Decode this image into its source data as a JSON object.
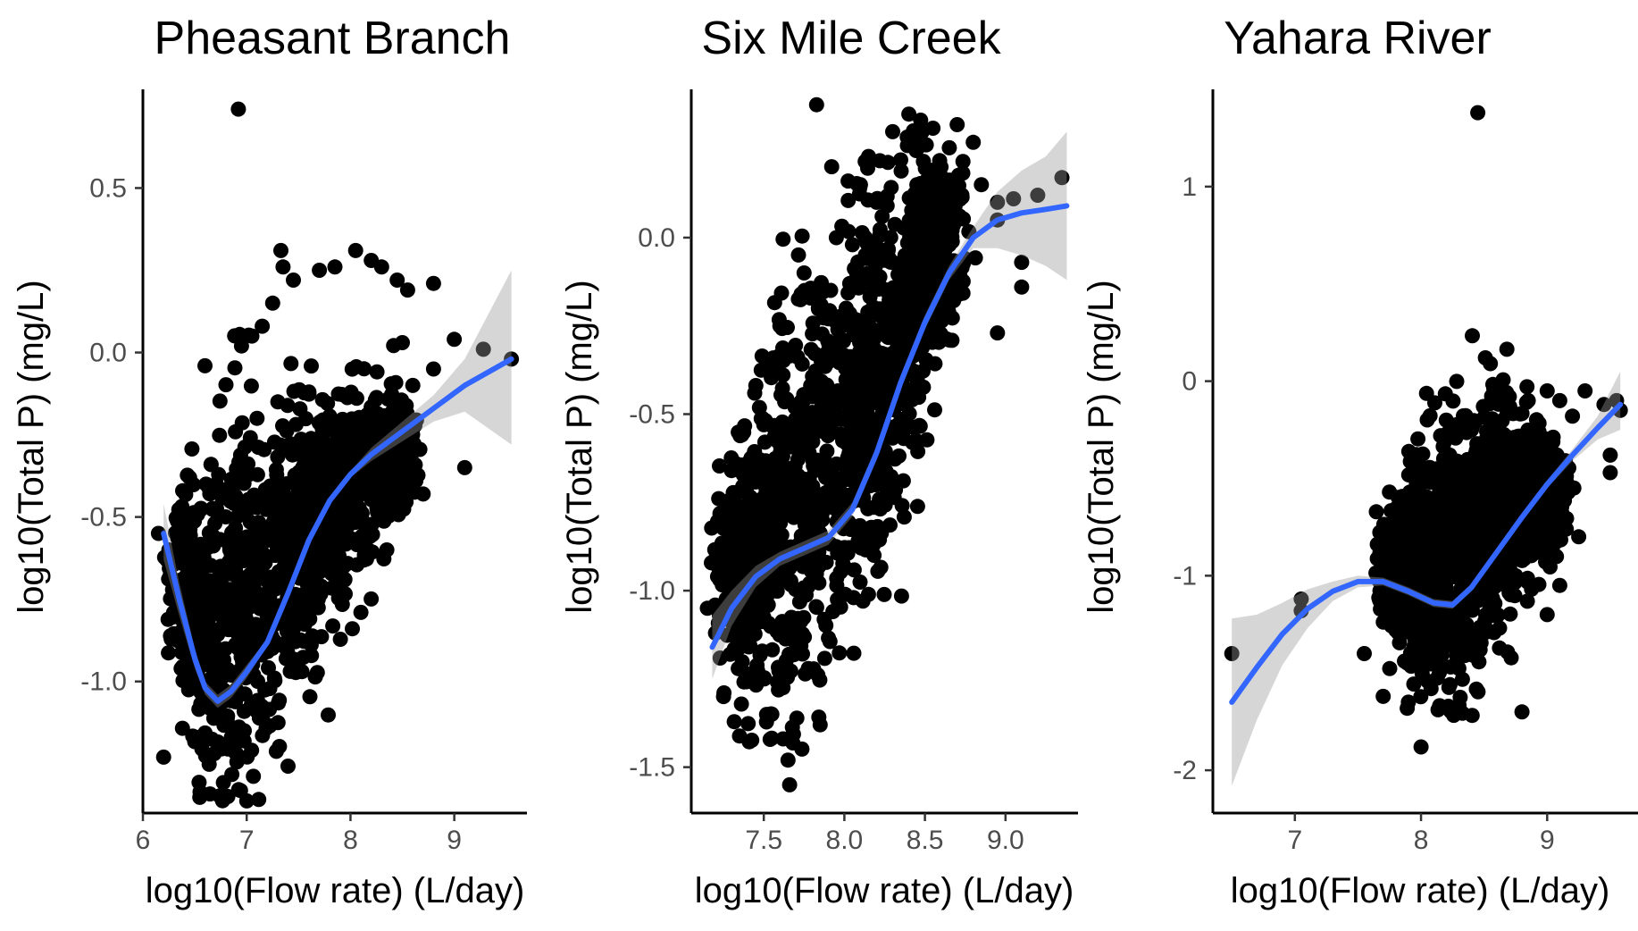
{
  "colors": {
    "points": "#000000",
    "smooth_line": "#3366FF",
    "ribbon": "#999999",
    "background": "#ffffff"
  },
  "chart_data": [
    {
      "type": "scatter",
      "title": "Pheasant Branch",
      "xlabel": "log10(Flow rate) (L/day)",
      "ylabel": "log10(Total P) (mg/L)",
      "xlim": [
        6.0,
        9.7
      ],
      "ylim": [
        -1.4,
        0.8
      ],
      "xticks": [
        6,
        7,
        8,
        9
      ],
      "xtick_labels": [
        "6",
        "7",
        "8",
        "9"
      ],
      "yticks": [
        -1.0,
        -0.5,
        0.0,
        0.5
      ],
      "ytick_labels": [
        "-1.0",
        "-0.5",
        "0.0",
        "0.5"
      ],
      "grid": false,
      "cloud": {
        "ridge": [
          [
            6.3,
            -0.72
          ],
          [
            6.6,
            -0.8
          ],
          [
            7.0,
            -0.75
          ],
          [
            7.4,
            -0.6
          ],
          [
            7.8,
            -0.45
          ],
          [
            8.2,
            -0.36
          ],
          [
            8.6,
            -0.3
          ]
        ],
        "half_width": [
          [
            6.3,
            0.22
          ],
          [
            6.6,
            0.48
          ],
          [
            7.0,
            0.5
          ],
          [
            7.4,
            0.42
          ],
          [
            7.8,
            0.3
          ],
          [
            8.2,
            0.22
          ],
          [
            8.6,
            0.12
          ]
        ],
        "y_min": -1.38
      },
      "points": [
        [
          6.92,
          0.74
        ],
        [
          6.2,
          -1.23
        ],
        [
          6.15,
          -0.55
        ],
        [
          6.25,
          -0.6
        ],
        [
          6.3,
          -0.87
        ],
        [
          6.4,
          -0.62
        ],
        [
          6.45,
          -0.38
        ],
        [
          7.7,
          0.25
        ],
        [
          7.85,
          0.26
        ],
        [
          8.05,
          0.31
        ],
        [
          8.2,
          0.28
        ],
        [
          8.3,
          0.26
        ],
        [
          8.45,
          0.22
        ],
        [
          8.55,
          0.19
        ],
        [
          8.8,
          0.21
        ],
        [
          7.35,
          0.26
        ],
        [
          7.45,
          0.22
        ],
        [
          7.25,
          0.15
        ],
        [
          7.15,
          0.08
        ],
        [
          6.95,
          0.02
        ],
        [
          7.05,
          0.05
        ],
        [
          8.5,
          0.03
        ],
        [
          8.6,
          -0.1
        ],
        [
          8.8,
          -0.05
        ],
        [
          9.0,
          0.04
        ],
        [
          9.28,
          0.01
        ],
        [
          9.55,
          -0.02
        ],
        [
          9.1,
          -0.35
        ],
        [
          8.7,
          -0.43
        ],
        [
          8.1,
          -0.79
        ],
        [
          8.35,
          -0.6
        ],
        [
          8.0,
          -0.25
        ],
        [
          7.6,
          -0.12
        ],
        [
          7.3,
          -0.15
        ],
        [
          7.1,
          -0.2
        ]
      ],
      "smooth": {
        "x": [
          6.2,
          6.35,
          6.5,
          6.6,
          6.72,
          6.85,
          7.0,
          7.2,
          7.4,
          7.6,
          7.8,
          8.0,
          8.2,
          8.5,
          8.8,
          9.1,
          9.55
        ],
        "y": [
          -0.55,
          -0.75,
          -0.93,
          -1.02,
          -1.06,
          -1.03,
          -0.97,
          -0.88,
          -0.73,
          -0.57,
          -0.45,
          -0.37,
          -0.31,
          -0.24,
          -0.17,
          -0.1,
          -0.02
        ],
        "lower": [
          -0.63,
          -0.8,
          -0.96,
          -1.04,
          -1.08,
          -1.05,
          -0.99,
          -0.89,
          -0.74,
          -0.58,
          -0.46,
          -0.38,
          -0.33,
          -0.27,
          -0.21,
          -0.18,
          -0.28
        ],
        "upper": [
          -0.46,
          -0.7,
          -0.9,
          -1.0,
          -1.04,
          -1.01,
          -0.95,
          -0.87,
          -0.72,
          -0.56,
          -0.44,
          -0.36,
          -0.29,
          -0.21,
          -0.13,
          -0.02,
          0.25
        ]
      }
    },
    {
      "type": "scatter",
      "title": "Six Mile Creek",
      "xlabel": "log10(Flow rate) (L/day)",
      "ylabel": "log10(Total P) (mg/L)",
      "xlim": [
        7.05,
        9.45
      ],
      "ylim": [
        -1.63,
        0.42
      ],
      "xticks": [
        7.5,
        8.0,
        8.5,
        9.0
      ],
      "xtick_labels": [
        "7.5",
        "8.0",
        "8.5",
        "9.0"
      ],
      "yticks": [
        -1.5,
        -1.0,
        -0.5,
        0.0
      ],
      "ytick_labels": [
        "-1.5",
        "-1.0",
        "-0.5",
        "0.0"
      ],
      "grid": false,
      "cloud": {
        "ridge": [
          [
            7.25,
            -0.95
          ],
          [
            7.5,
            -0.85
          ],
          [
            7.75,
            -0.75
          ],
          [
            8.0,
            -0.55
          ],
          [
            8.25,
            -0.35
          ],
          [
            8.5,
            -0.1
          ],
          [
            8.7,
            0.0
          ]
        ],
        "half_width": [
          [
            7.25,
            0.25
          ],
          [
            7.5,
            0.45
          ],
          [
            7.75,
            0.55
          ],
          [
            8.0,
            0.5
          ],
          [
            8.25,
            0.45
          ],
          [
            8.5,
            0.35
          ],
          [
            8.7,
            0.2
          ]
        ],
        "y_min": -1.45
      },
      "points": [
        [
          7.15,
          -1.05
        ],
        [
          7.2,
          -1.12
        ],
        [
          7.25,
          -1.3
        ],
        [
          7.3,
          -0.66
        ],
        [
          7.4,
          -0.68
        ],
        [
          7.5,
          -0.53
        ],
        [
          7.62,
          -1.42
        ],
        [
          7.65,
          -1.48
        ],
        [
          7.66,
          -1.55
        ],
        [
          7.55,
          -1.35
        ],
        [
          7.75,
          -0.6
        ],
        [
          7.85,
          -1.38
        ],
        [
          7.6,
          -0.25
        ],
        [
          7.75,
          -0.1
        ],
        [
          8.15,
          0.23
        ],
        [
          8.1,
          0.15
        ],
        [
          8.3,
          0.3
        ],
        [
          8.4,
          0.35
        ],
        [
          8.55,
          0.31
        ],
        [
          8.7,
          0.32
        ],
        [
          8.8,
          0.27
        ],
        [
          8.6,
          0.2
        ],
        [
          8.35,
          0.22
        ],
        [
          8.45,
          0.15
        ],
        [
          8.85,
          0.15
        ],
        [
          8.95,
          0.1
        ],
        [
          9.05,
          0.11
        ],
        [
          9.2,
          0.12
        ],
        [
          9.35,
          0.17
        ],
        [
          8.95,
          0.05
        ],
        [
          9.1,
          -0.07
        ],
        [
          9.1,
          -0.14
        ],
        [
          8.95,
          -0.27
        ],
        [
          8.45,
          0.06
        ],
        [
          8.2,
          0.1
        ],
        [
          7.95,
          0.0
        ],
        [
          8.05,
          -0.02
        ],
        [
          8.5,
          -0.12
        ]
      ],
      "smooth": {
        "x": [
          7.18,
          7.3,
          7.45,
          7.6,
          7.75,
          7.9,
          8.05,
          8.2,
          8.35,
          8.5,
          8.65,
          8.8,
          8.95,
          9.1,
          9.25,
          9.38
        ],
        "y": [
          -1.16,
          -1.05,
          -0.96,
          -0.91,
          -0.88,
          -0.85,
          -0.77,
          -0.61,
          -0.41,
          -0.24,
          -0.1,
          0.0,
          0.05,
          0.07,
          0.08,
          0.09
        ],
        "lower": [
          -1.25,
          -1.1,
          -0.99,
          -0.93,
          -0.9,
          -0.87,
          -0.79,
          -0.63,
          -0.43,
          -0.26,
          -0.12,
          -0.03,
          -0.03,
          -0.05,
          -0.08,
          -0.12
        ],
        "upper": [
          -1.07,
          -1.0,
          -0.93,
          -0.89,
          -0.86,
          -0.83,
          -0.75,
          -0.59,
          -0.39,
          -0.22,
          -0.08,
          0.03,
          0.13,
          0.19,
          0.23,
          0.3
        ]
      }
    },
    {
      "type": "scatter",
      "title": "Yahara River",
      "xlabel": "log10(Flow rate) (L/day)",
      "ylabel": "log10(Total P) (mg/L)",
      "xlim": [
        6.35,
        9.72
      ],
      "ylim": [
        -2.22,
        1.5
      ],
      "xticks": [
        7,
        8,
        9
      ],
      "xtick_labels": [
        "7",
        "8",
        "9"
      ],
      "yticks": [
        -2,
        -1,
        0,
        1
      ],
      "ytick_labels": [
        "-2",
        "-1",
        "0",
        "1"
      ],
      "grid": false,
      "cloud": {
        "ridge": [
          [
            7.7,
            -1.0
          ],
          [
            8.0,
            -0.95
          ],
          [
            8.3,
            -0.85
          ],
          [
            8.6,
            -0.7
          ],
          [
            8.9,
            -0.6
          ],
          [
            9.1,
            -0.55
          ]
        ],
        "half_width": [
          [
            7.7,
            0.25
          ],
          [
            8.0,
            0.55
          ],
          [
            8.3,
            0.65
          ],
          [
            8.6,
            0.55
          ],
          [
            8.9,
            0.35
          ],
          [
            9.1,
            0.2
          ]
        ],
        "y_min": -1.72
      },
      "points": [
        [
          8.45,
          1.38
        ],
        [
          6.5,
          -1.4
        ],
        [
          7.05,
          -1.12
        ],
        [
          7.05,
          -1.18
        ],
        [
          7.55,
          -1.4
        ],
        [
          7.7,
          -1.62
        ],
        [
          7.9,
          -1.65
        ],
        [
          8.0,
          -1.88
        ],
        [
          8.8,
          -1.7
        ],
        [
          7.8,
          -1.28
        ],
        [
          7.75,
          -0.57
        ],
        [
          8.2,
          -0.2
        ],
        [
          8.4,
          -0.25
        ],
        [
          8.55,
          0.09
        ],
        [
          8.7,
          -0.08
        ],
        [
          8.85,
          -0.1
        ],
        [
          9.0,
          -0.05
        ],
        [
          9.1,
          -0.1
        ],
        [
          9.2,
          -0.18
        ],
        [
          9.3,
          -0.05
        ],
        [
          9.45,
          -0.12
        ],
        [
          9.55,
          -0.1
        ],
        [
          9.58,
          -0.15
        ],
        [
          9.5,
          -0.38
        ],
        [
          9.5,
          -0.47
        ],
        [
          9.25,
          -0.8
        ],
        [
          9.1,
          -1.05
        ],
        [
          9.0,
          -1.2
        ]
      ],
      "smooth": {
        "x": [
          6.5,
          6.7,
          6.9,
          7.1,
          7.3,
          7.5,
          7.7,
          7.9,
          8.1,
          8.25,
          8.4,
          8.6,
          8.8,
          9.0,
          9.2,
          9.4,
          9.58
        ],
        "y": [
          -1.65,
          -1.47,
          -1.3,
          -1.17,
          -1.08,
          -1.03,
          -1.03,
          -1.08,
          -1.14,
          -1.15,
          -1.06,
          -0.88,
          -0.7,
          -0.53,
          -0.38,
          -0.24,
          -0.12
        ],
        "lower": [
          -2.08,
          -1.74,
          -1.46,
          -1.27,
          -1.13,
          -1.06,
          -1.05,
          -1.1,
          -1.16,
          -1.17,
          -1.08,
          -0.9,
          -0.72,
          -0.55,
          -0.41,
          -0.3,
          -0.25
        ],
        "upper": [
          -1.22,
          -1.2,
          -1.14,
          -1.07,
          -1.03,
          -1.0,
          -1.01,
          -1.06,
          -1.12,
          -1.13,
          -1.04,
          -0.86,
          -0.68,
          -0.51,
          -0.35,
          -0.18,
          0.05
        ]
      }
    }
  ]
}
